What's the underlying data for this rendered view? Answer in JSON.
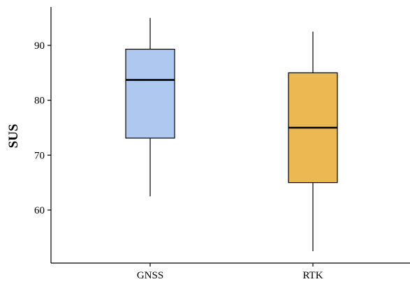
{
  "chart_data": {
    "type": "boxplot",
    "xlabel": "",
    "ylabel": "SUS",
    "ylim": [
      51.5,
      97
    ],
    "yticks": [
      60,
      70,
      80,
      90
    ],
    "grid": false,
    "legend": "none",
    "categories": [
      "GNSS",
      "RTK"
    ],
    "boxes": [
      {
        "category": "GNSS",
        "min": 62.5,
        "q1": 73.1,
        "median": 83.7,
        "q3": 89.3,
        "max": 95.0,
        "color": "#AEC8F0"
      },
      {
        "category": "RTK",
        "min": 52.5,
        "q1": 65.0,
        "median": 75.0,
        "q3": 85.0,
        "max": 92.5,
        "color": "#EBB852"
      }
    ]
  }
}
